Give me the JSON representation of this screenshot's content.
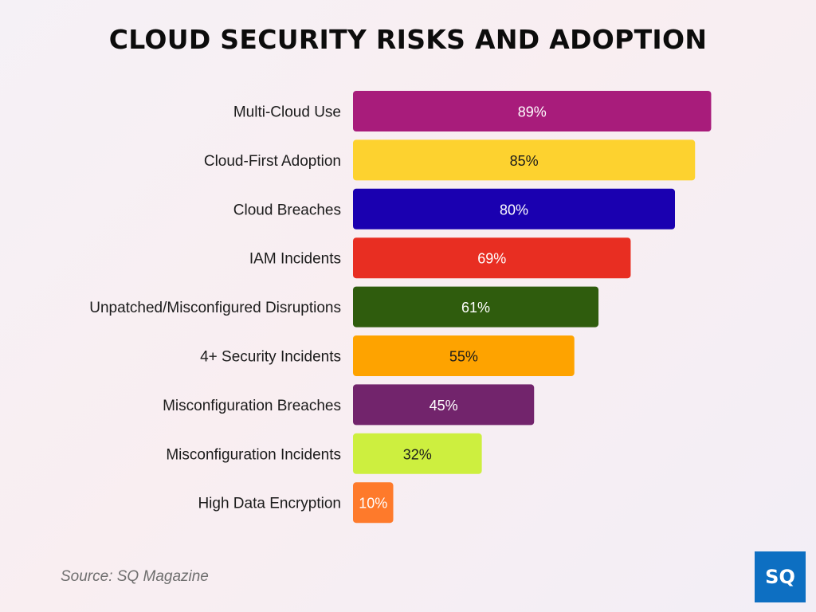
{
  "chart_data": {
    "type": "bar",
    "orientation": "horizontal",
    "title": "CLOUD SECURITY RISKS AND ADOPTION",
    "categories": [
      "Multi-Cloud Use",
      "Cloud-First Adoption",
      "Cloud Breaches",
      "IAM Incidents",
      "Unpatched/Misconfigured Disruptions",
      "4+ Security Incidents",
      "Misconfiguration Breaches",
      "Misconfiguration Incidents",
      "High Data Encryption"
    ],
    "values": [
      89,
      85,
      80,
      69,
      61,
      55,
      45,
      32,
      10
    ],
    "value_labels": [
      "89%",
      "85%",
      "80%",
      "69%",
      "61%",
      "55%",
      "45%",
      "32%",
      "10%"
    ],
    "colors": [
      "#a81c7b",
      "#fdd22f",
      "#1a00b0",
      "#e82e22",
      "#2f5c0d",
      "#fea300",
      "#72246c",
      "#cdef3f",
      "#fe7a2b"
    ],
    "label_colors": [
      "#ffffff",
      "#1b1b1b",
      "#ffffff",
      "#ffffff",
      "#ffffff",
      "#1b1b1b",
      "#ffffff",
      "#1b1b1b",
      "#ffffff"
    ],
    "xlim": [
      0,
      100
    ],
    "grid": false,
    "legend": "none"
  },
  "source": "Source: SQ Magazine",
  "logo": {
    "text": "SQ",
    "color": "#0d6fc2"
  }
}
